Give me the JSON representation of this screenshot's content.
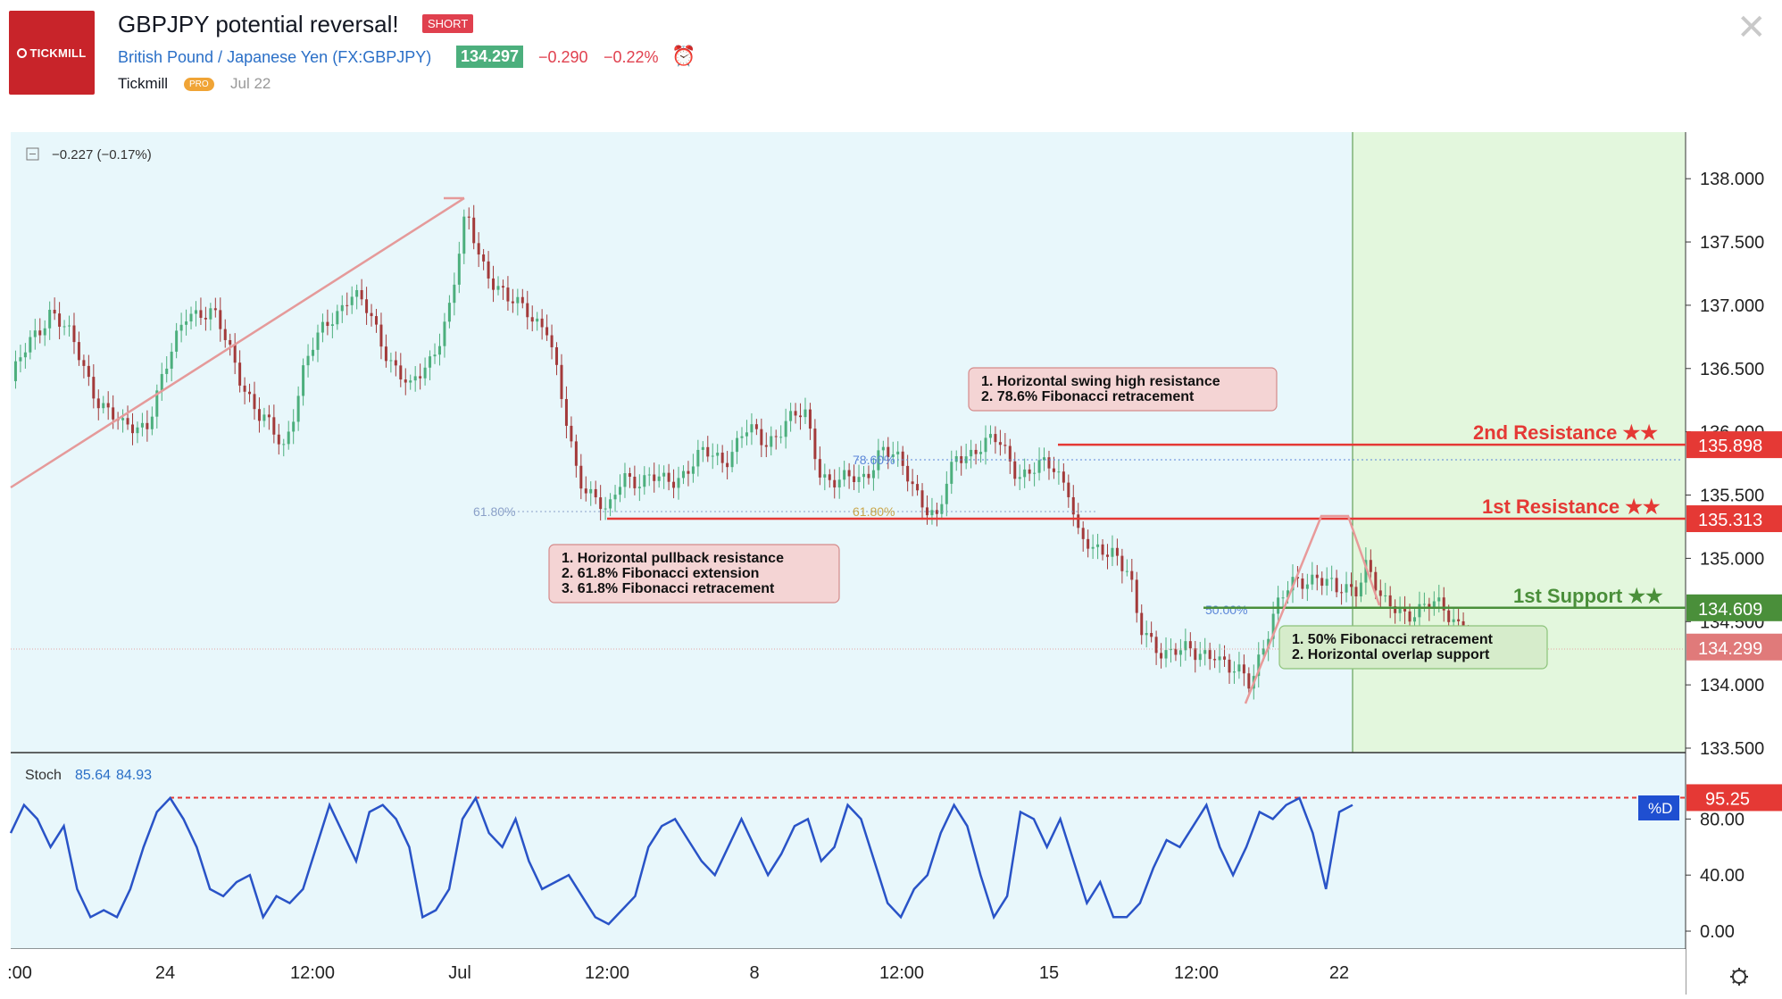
{
  "header": {
    "logo_text": "TICKMILL",
    "title": "GBPJPY potential reversal!",
    "direction_badge": "SHORT",
    "symbol_name": "British Pound / Japanese Yen",
    "symbol_code": "(FX:GBPJPY)",
    "last_price": "134.297",
    "change_abs": "−0.290",
    "change_pct": "−0.22%",
    "author": "Tickmill",
    "author_badge": "PRO",
    "publish_date": "Jul 22",
    "alarm_icon": "alarm-clock-icon",
    "close_icon": "close-icon"
  },
  "colors": {
    "bg": "#e8f7fb",
    "green_zone": "#e3f7dd",
    "candle_up": "#4caf7d",
    "candle_down": "#a33a3a",
    "resistance": "#e53935",
    "support": "#4a8f3a",
    "stoch_line": "#2953c7",
    "overbought": "#e53935"
  },
  "chart_data": {
    "type": "candlestick",
    "symbol": "GBPJPY",
    "legend_change": "−0.227 (−0.17%)",
    "ylim": [
      133.5,
      138.1
    ],
    "y_ticks": [
      "138.000",
      "137.500",
      "137.000",
      "136.500",
      "136.000",
      "135.500",
      "135.000",
      "134.500",
      "134.000",
      "133.500"
    ],
    "x_ticks": [
      ":00",
      "24",
      "12:00",
      "Jul",
      "12:00",
      "8",
      "12:00",
      "15",
      "12:00",
      "22"
    ],
    "close_path": [
      [
        0,
        136.4
      ],
      [
        4,
        136.7
      ],
      [
        8,
        137.0
      ],
      [
        12,
        136.7
      ],
      [
        17,
        136.3
      ],
      [
        22,
        136.0
      ],
      [
        27,
        136.1
      ],
      [
        31,
        136.5
      ],
      [
        35,
        137.0
      ],
      [
        40,
        136.9
      ],
      [
        44,
        136.6
      ],
      [
        49,
        136.1
      ],
      [
        54,
        135.9
      ],
      [
        58,
        136.5
      ],
      [
        63,
        136.9
      ],
      [
        67,
        137.1
      ],
      [
        71,
        136.9
      ],
      [
        75,
        136.6
      ],
      [
        79,
        136.3
      ],
      [
        83,
        136.6
      ],
      [
        87,
        137.0
      ],
      [
        90,
        137.7
      ],
      [
        94,
        137.3
      ],
      [
        98,
        137.0
      ],
      [
        102,
        137.0
      ],
      [
        106,
        136.8
      ],
      [
        109,
        136.2
      ],
      [
        112,
        135.7
      ],
      [
        115,
        135.5
      ],
      [
        118,
        135.3
      ],
      [
        121,
        135.7
      ],
      [
        125,
        135.6
      ],
      [
        129,
        135.6
      ],
      [
        133,
        135.7
      ],
      [
        137,
        135.8
      ],
      [
        141,
        135.8
      ],
      [
        145,
        136.0
      ],
      [
        149,
        135.9
      ],
      [
        153,
        136.1
      ],
      [
        157,
        136.1
      ],
      [
        160,
        135.7
      ],
      [
        164,
        135.6
      ],
      [
        168,
        135.6
      ],
      [
        172,
        135.9
      ],
      [
        176,
        135.7
      ],
      [
        180,
        135.5
      ],
      [
        183,
        135.3
      ],
      [
        187,
        135.8
      ],
      [
        191,
        135.9
      ],
      [
        195,
        135.9
      ],
      [
        199,
        135.7
      ],
      [
        203,
        135.7
      ],
      [
        206,
        135.7
      ],
      [
        209,
        135.6
      ],
      [
        211,
        135.2
      ],
      [
        214,
        135.0
      ],
      [
        218,
        135.1
      ],
      [
        221,
        134.9
      ],
      [
        223,
        134.4
      ],
      [
        226,
        134.3
      ],
      [
        230,
        134.3
      ],
      [
        234,
        134.2
      ],
      [
        238,
        134.3
      ],
      [
        241,
        134.1
      ],
      [
        245,
        134.0
      ],
      [
        247,
        134.3
      ],
      [
        250,
        134.6
      ],
      [
        254,
        134.8
      ],
      [
        258,
        134.9
      ],
      [
        262,
        134.7
      ],
      [
        266,
        134.8
      ],
      [
        268,
        135.0
      ],
      [
        271,
        134.6
      ],
      [
        275,
        134.6
      ],
      [
        279,
        134.6
      ],
      [
        283,
        134.6
      ],
      [
        287,
        134.5
      ],
      [
        289,
        134.3
      ]
    ],
    "levels": [
      {
        "name": "2nd Resistance ★★",
        "price_label": "135.898",
        "value": 135.898
      },
      {
        "name": "1st Resistance ★★",
        "price_label": "135.313",
        "value": 135.313
      },
      {
        "name": "1st Support ★★",
        "price_label": "134.609",
        "value": 134.609
      },
      {
        "name": "",
        "price_label": "134.299",
        "value": 134.299
      }
    ],
    "fib_labels": [
      "61.80%",
      "61.80%",
      "78.60%",
      "50.00%"
    ],
    "annotations": {
      "pullback": [
        "1. Horizontal pullback resistance",
        "2. 61.8% Fibonacci extension",
        "3. 61.8% Fibonacci retracement"
      ],
      "swing_high": [
        "1. Horizontal swing high resistance",
        "2. 78.6% Fibonacci retracement"
      ],
      "support": [
        "1. 50% Fibonacci retracement",
        "2. Horizontal overlap support"
      ]
    },
    "stoch": {
      "label": "Stoch",
      "k_value": "85.64",
      "d_value": "84.93",
      "overbought_label": "95.25",
      "series_tag": "%D",
      "y_ticks": [
        "80.00",
        "40.00",
        "0.00"
      ],
      "ylim": [
        0,
        100
      ],
      "values": [
        70,
        90,
        80,
        60,
        75,
        30,
        10,
        15,
        10,
        30,
        60,
        85,
        95,
        80,
        60,
        30,
        25,
        35,
        40,
        10,
        25,
        20,
        30,
        60,
        90,
        70,
        50,
        85,
        90,
        80,
        60,
        10,
        15,
        30,
        80,
        95,
        70,
        60,
        80,
        50,
        30,
        35,
        40,
        25,
        10,
        5,
        15,
        25,
        60,
        75,
        80,
        65,
        50,
        40,
        60,
        80,
        60,
        40,
        55,
        75,
        80,
        50,
        60,
        90,
        80,
        50,
        20,
        10,
        30,
        40,
        70,
        90,
        75,
        40,
        10,
        25,
        85,
        80,
        60,
        80,
        50,
        20,
        35,
        10,
        10,
        20,
        45,
        65,
        60,
        75,
        90,
        60,
        40,
        60,
        85,
        80,
        90,
        95,
        70,
        30,
        85,
        90
      ]
    }
  }
}
